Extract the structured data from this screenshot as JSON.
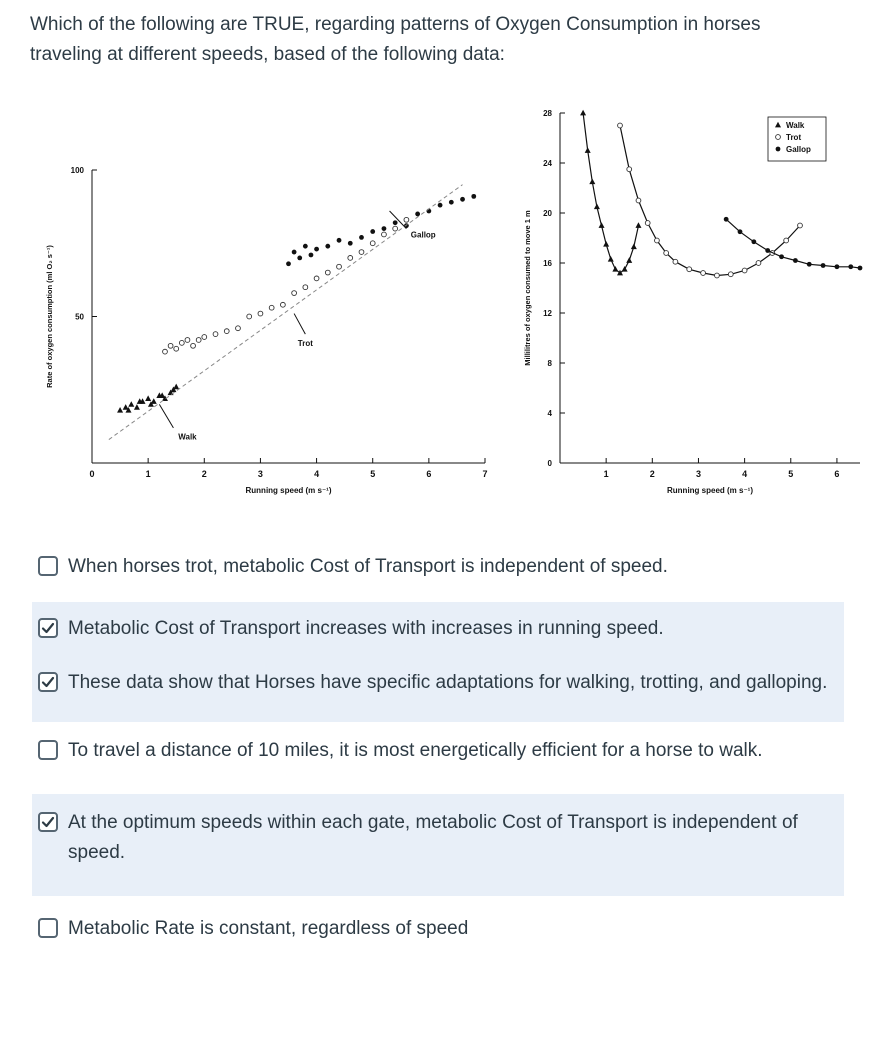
{
  "question": {
    "text": "Which of the following are TRUE, regarding patterns of Oxygen Consumption in horses traveling at different speeds, based of the following data:"
  },
  "figures": {
    "left": {
      "ylabel": "Rate of oxygen consumption (ml O₂ s⁻¹)",
      "xlabel": "Running speed (m s⁻¹)",
      "annotations": [
        "Walk",
        "Trot",
        "Gallop"
      ]
    },
    "right": {
      "ylabel": "Millilitres of oxygen consumed to move 1 m",
      "xlabel": "Running speed (m s⁻¹)",
      "legend": [
        "Walk",
        "Trot",
        "Gallop"
      ]
    }
  },
  "chart_data": [
    {
      "type": "scatter",
      "title": "",
      "xlabel": "Running speed (m s⁻¹)",
      "ylabel": "Rate of oxygen consumption (ml O₂ s⁻¹)",
      "xlim": [
        0,
        7
      ],
      "ylim": [
        0,
        100
      ],
      "xticks": [
        0,
        1,
        2,
        3,
        4,
        5,
        6,
        7
      ],
      "yticks": [
        50,
        100
      ],
      "annotations": [
        {
          "text": "Walk",
          "x": 1.7,
          "y": 8
        },
        {
          "text": "Trot",
          "x": 3.8,
          "y": 40
        },
        {
          "text": "Gallop",
          "x": 5.9,
          "y": 77
        }
      ],
      "series": [
        {
          "name": "Walk",
          "marker": "triangle",
          "x": [
            0.5,
            0.6,
            0.7,
            0.8,
            0.9,
            1.0,
            1.1,
            1.2,
            1.3,
            1.4,
            1.5,
            0.65,
            0.85,
            1.05,
            1.25,
            1.45
          ],
          "y": [
            18,
            19,
            20,
            19,
            21,
            22,
            21,
            23,
            22,
            24,
            26,
            18,
            21,
            20,
            23,
            25
          ]
        },
        {
          "name": "Trot",
          "marker": "open-circle",
          "x": [
            1.3,
            1.4,
            1.5,
            1.6,
            1.7,
            1.8,
            1.9,
            2.0,
            2.2,
            2.4,
            2.6,
            2.8,
            3.0,
            3.2,
            3.4,
            3.6,
            3.8,
            4.0,
            4.2,
            4.4,
            4.6,
            4.8,
            5.0,
            5.2,
            5.4,
            5.6
          ],
          "y": [
            38,
            40,
            39,
            41,
            42,
            40,
            42,
            43,
            44,
            45,
            46,
            50,
            51,
            53,
            54,
            58,
            60,
            63,
            65,
            67,
            70,
            72,
            75,
            78,
            80,
            83
          ]
        },
        {
          "name": "Gallop",
          "marker": "filled-circle",
          "x": [
            3.5,
            3.6,
            3.7,
            3.8,
            3.9,
            4.0,
            4.2,
            4.4,
            4.6,
            4.8,
            5.0,
            5.2,
            5.4,
            5.6,
            5.8,
            6.0,
            6.2,
            6.4,
            6.6,
            6.8
          ],
          "y": [
            68,
            72,
            70,
            74,
            71,
            73,
            74,
            76,
            75,
            77,
            79,
            80,
            82,
            81,
            85,
            86,
            88,
            89,
            90,
            91
          ]
        }
      ]
    },
    {
      "type": "line",
      "title": "",
      "xlabel": "Running speed (m s⁻¹)",
      "ylabel": "Millilitres of oxygen consumed to move 1 m",
      "xlim": [
        0,
        6.5
      ],
      "ylim": [
        0,
        28
      ],
      "xticks": [
        1,
        2,
        3,
        4,
        5,
        6
      ],
      "yticks": [
        0,
        4,
        8,
        12,
        16,
        20,
        24,
        28
      ],
      "legend": "top-right",
      "series": [
        {
          "name": "Walk",
          "marker": "triangle",
          "x": [
            0.5,
            0.6,
            0.7,
            0.8,
            0.9,
            1.0,
            1.1,
            1.2,
            1.3,
            1.4,
            1.5,
            1.6,
            1.7
          ],
          "y": [
            28,
            25,
            22.5,
            20.5,
            19,
            17.5,
            16.3,
            15.5,
            15.2,
            15.5,
            16.2,
            17.3,
            19
          ]
        },
        {
          "name": "Trot",
          "marker": "open-circle",
          "x": [
            1.3,
            1.5,
            1.7,
            1.9,
            2.1,
            2.3,
            2.5,
            2.8,
            3.1,
            3.4,
            3.7,
            4.0,
            4.3,
            4.6,
            4.9,
            5.2
          ],
          "y": [
            27,
            23.5,
            21,
            19.2,
            17.8,
            16.8,
            16.1,
            15.5,
            15.2,
            15.0,
            15.1,
            15.4,
            16.0,
            16.8,
            17.8,
            19
          ]
        },
        {
          "name": "Gallop",
          "marker": "filled-circle",
          "x": [
            3.6,
            3.9,
            4.2,
            4.5,
            4.8,
            5.1,
            5.4,
            5.7,
            6.0,
            6.3,
            6.5
          ],
          "y": [
            19.5,
            18.5,
            17.7,
            17.0,
            16.5,
            16.2,
            15.9,
            15.8,
            15.7,
            15.7,
            15.6
          ]
        }
      ]
    }
  ],
  "answers": [
    {
      "text": "When horses trot, metabolic Cost of Transport is independent of speed.",
      "checked": false
    },
    {
      "text": "Metabolic Cost of Transport increases with increases in running speed.",
      "checked": true
    },
    {
      "text": "These data show that Horses have specific adaptations for walking, trotting, and galloping.",
      "checked": true
    },
    {
      "text": "To travel a distance of 10 miles, it is most energetically efficient for a horse to walk.",
      "checked": false
    },
    {
      "text": "At the optimum speeds within each gate, metabolic Cost of Transport is independent of speed.",
      "checked": true
    },
    {
      "text": "Metabolic Rate is constant, regardless of speed",
      "checked": false
    }
  ],
  "colors": {
    "text": "#2d3b45",
    "selected_bg": "#e8eff8",
    "checkbox_border": "#556572"
  },
  "icons": {
    "checked": "checkmark-icon",
    "unchecked": "empty-checkbox-icon"
  }
}
